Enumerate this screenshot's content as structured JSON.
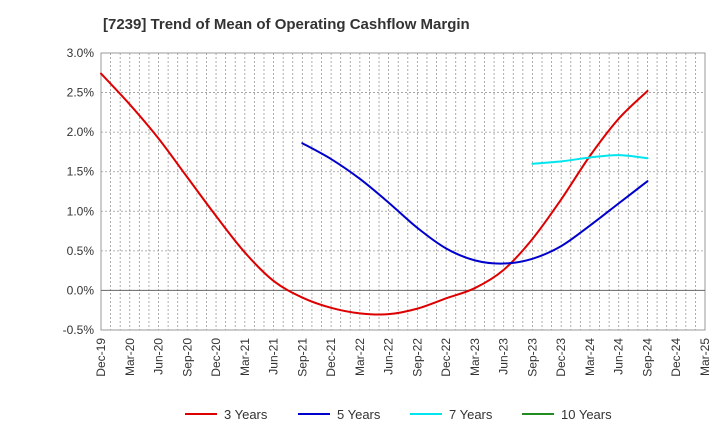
{
  "chart_data": {
    "type": "line",
    "title": "[7239]  Trend of Mean of Operating Cashflow Margin",
    "xlabel": "",
    "ylabel": "",
    "categories": [
      "Dec-19",
      "Mar-20",
      "Jun-20",
      "Sep-20",
      "Dec-20",
      "Mar-21",
      "Jun-21",
      "Sep-21",
      "Dec-21",
      "Mar-22",
      "Jun-22",
      "Sep-22",
      "Dec-22",
      "Mar-23",
      "Jun-23",
      "Sep-23",
      "Dec-23",
      "Mar-24",
      "Jun-24",
      "Sep-24",
      "Dec-24",
      "Mar-25"
    ],
    "yticks": [
      "3.0%",
      "2.5%",
      "2.0%",
      "1.5%",
      "1.0%",
      "0.5%",
      "0.0%",
      "-0.5%"
    ],
    "ylim": [
      -0.5,
      3.0
    ],
    "grid": true,
    "legend_position": "bottom",
    "series": [
      {
        "name": "3 Years",
        "color": "#dd0000",
        "values": [
          2.74,
          2.35,
          1.92,
          1.43,
          0.94,
          0.48,
          0.12,
          -0.09,
          -0.22,
          -0.29,
          -0.3,
          -0.23,
          -0.1,
          0.03,
          0.26,
          0.65,
          1.15,
          1.7,
          2.17,
          2.52,
          null,
          null
        ]
      },
      {
        "name": "5 Years",
        "color": "#0000cc",
        "values": [
          null,
          null,
          null,
          null,
          null,
          null,
          null,
          1.86,
          1.66,
          1.41,
          1.11,
          0.79,
          0.53,
          0.38,
          0.34,
          0.4,
          0.56,
          0.82,
          1.1,
          1.38,
          null,
          null
        ]
      },
      {
        "name": "7 Years",
        "color": "#00e5ee",
        "values": [
          null,
          null,
          null,
          null,
          null,
          null,
          null,
          null,
          null,
          null,
          null,
          null,
          null,
          null,
          null,
          1.6,
          1.63,
          1.68,
          1.71,
          1.67,
          null,
          null
        ]
      },
      {
        "name": "10 Years",
        "color": "#228b22",
        "values": [
          null,
          null,
          null,
          null,
          null,
          null,
          null,
          null,
          null,
          null,
          null,
          null,
          null,
          null,
          null,
          null,
          null,
          null,
          null,
          null,
          null,
          null
        ]
      }
    ]
  }
}
